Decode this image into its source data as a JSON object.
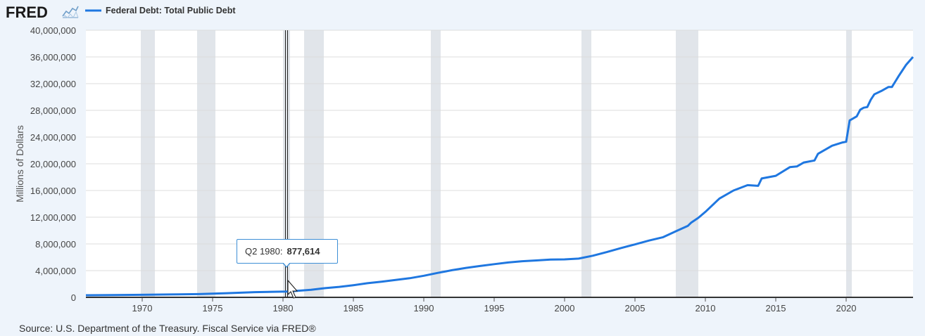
{
  "header": {
    "logo_text": "FRED",
    "logo_icon": "trend-line-icon",
    "legend_label": "Federal Debt: Total Public Debt"
  },
  "source_text": "Source: U.S. Department of the Treasury. Fiscal Service via FRED®",
  "tooltip": {
    "label": "Q2 1980:",
    "value": "877,614"
  },
  "colors": {
    "line": "#1f77e0",
    "recession": "#e1e5ea",
    "background": "#eef4fb",
    "plot": "#ffffff"
  },
  "chart_data": {
    "type": "line",
    "title": "",
    "xlabel": "",
    "ylabel": "Millions of Dollars",
    "xlim": [
      1966.0,
      2024.75
    ],
    "ylim": [
      0,
      40000000
    ],
    "x_ticks": [
      "1970",
      "1975",
      "1980",
      "1985",
      "1990",
      "1995",
      "2000",
      "2005",
      "2010",
      "2015",
      "2020"
    ],
    "y_ticks": [
      "0",
      "4,000,000",
      "8,000,000",
      "12,000,000",
      "16,000,000",
      "20,000,000",
      "24,000,000",
      "28,000,000",
      "32,000,000",
      "36,000,000",
      "40,000,000"
    ],
    "grid": true,
    "legend": "top-left",
    "recessions": [
      [
        1969.9,
        1970.9
      ],
      [
        1973.9,
        1975.2
      ],
      [
        1980.0,
        1980.5
      ],
      [
        1981.5,
        1982.9
      ],
      [
        1990.5,
        1991.2
      ],
      [
        2001.2,
        2001.9
      ],
      [
        2007.9,
        2009.5
      ],
      [
        2020.0,
        2020.4
      ]
    ],
    "highlight": {
      "x": 1980.25,
      "y": 877614
    },
    "series": [
      {
        "name": "Federal Debt: Total Public Debt",
        "x": [
          1966.0,
          1968,
          1970,
          1972,
          1974,
          1976,
          1978,
          1980.25,
          1981,
          1982,
          1983,
          1984,
          1985,
          1986,
          1987,
          1988,
          1989,
          1990,
          1991,
          1992,
          1993,
          1994,
          1995,
          1996,
          1997,
          1998,
          1999,
          2000,
          2001,
          2002,
          2003,
          2004,
          2005,
          2006,
          2007,
          2008,
          2008.75,
          2009,
          2009.5,
          2010,
          2011,
          2012,
          2013,
          2013.75,
          2014,
          2015,
          2016,
          2016.5,
          2017,
          2017.75,
          2018,
          2019,
          2019.75,
          2020.0,
          2020.25,
          2020.75,
          2021,
          2021.25,
          2021.5,
          2021.75,
          2022,
          2022.5,
          2023,
          2023.25,
          2023.75,
          2024,
          2024.25,
          2024.75
        ],
        "y": [
          320000,
          350000,
          380000,
          430000,
          480000,
          620000,
          780000,
          877614,
          980000,
          1140000,
          1380000,
          1570000,
          1820000,
          2120000,
          2350000,
          2600000,
          2860000,
          3230000,
          3660000,
          4060000,
          4410000,
          4690000,
          4970000,
          5220000,
          5410000,
          5530000,
          5660000,
          5680000,
          5800000,
          6230000,
          6780000,
          7380000,
          7930000,
          8510000,
          9010000,
          9990000,
          10700000,
          11200000,
          11900000,
          12800000,
          14800000,
          16000000,
          16800000,
          16700000,
          17800000,
          18200000,
          19500000,
          19600000,
          20200000,
          20500000,
          21500000,
          22700000,
          23200000,
          23300000,
          26500000,
          27100000,
          28100000,
          28400000,
          28500000,
          29600000,
          30400000,
          30900000,
          31500000,
          31500000,
          33200000,
          34000000,
          34800000,
          36000000
        ]
      }
    ]
  }
}
